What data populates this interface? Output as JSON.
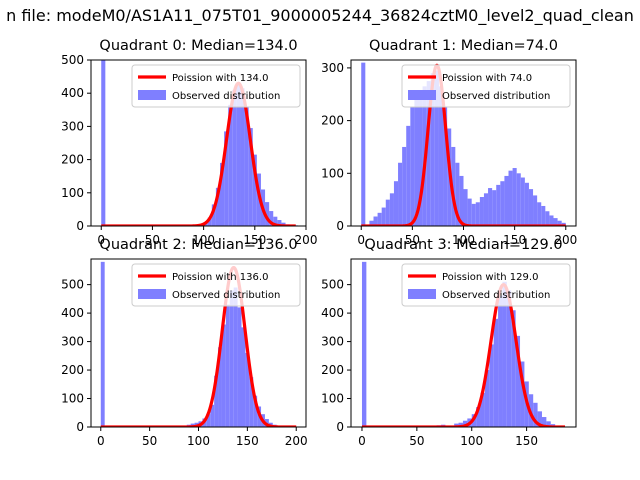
{
  "suptitle": "n file: modeM0/AS1A11_075T01_9000005244_36824cztM0_level2_quad_clean",
  "colors": {
    "observed": "#7f7fff",
    "poisson": "#ff0000",
    "axes": "#000000"
  },
  "chart_data": [
    {
      "type": "bar",
      "title": "Quadrant 0: Median=134.0",
      "xlim": [
        -10,
        200
      ],
      "ylim": [
        0,
        500
      ],
      "xticks": [
        0,
        50,
        100,
        150,
        200
      ],
      "yticks": [
        0,
        100,
        200,
        300,
        400,
        500
      ],
      "bin_width": 4,
      "histogram": {
        "name": "Observed distribution",
        "bins": [
          [
            0,
            500
          ],
          [
            96,
            5
          ],
          [
            100,
            12
          ],
          [
            104,
            25
          ],
          [
            108,
            65
          ],
          [
            112,
            115
          ],
          [
            116,
            190
          ],
          [
            120,
            285
          ],
          [
            124,
            365
          ],
          [
            128,
            410
          ],
          [
            132,
            428
          ],
          [
            136,
            415
          ],
          [
            140,
            360
          ],
          [
            144,
            295
          ],
          [
            148,
            215
          ],
          [
            152,
            158
          ],
          [
            156,
            110
          ],
          [
            160,
            72
          ],
          [
            164,
            45
          ],
          [
            168,
            28
          ],
          [
            172,
            18
          ],
          [
            176,
            10
          ],
          [
            180,
            5
          ],
          [
            184,
            3
          ],
          [
            188,
            2
          ]
        ]
      },
      "poisson": {
        "name": "Poission with 134.0",
        "mean": 134.0,
        "peak": 430,
        "sigma": 11.6,
        "xrange": [
          0,
          190
        ]
      },
      "legend": {
        "position": "upper-right",
        "entries": [
          "Poission with 134.0",
          "Observed distribution"
        ]
      }
    },
    {
      "type": "bar",
      "title": "Quadrant 1: Median=74.0",
      "xlim": [
        -10,
        210
      ],
      "ylim": [
        0,
        315
      ],
      "xticks": [
        0,
        50,
        100,
        150,
        200
      ],
      "yticks": [
        0,
        100,
        200,
        300
      ],
      "bin_width": 4,
      "histogram": {
        "name": "Observed distribution",
        "bins": [
          [
            0,
            310
          ],
          [
            8,
            10
          ],
          [
            12,
            18
          ],
          [
            16,
            25
          ],
          [
            20,
            35
          ],
          [
            24,
            50
          ],
          [
            28,
            62
          ],
          [
            32,
            85
          ],
          [
            36,
            120
          ],
          [
            40,
            150
          ],
          [
            44,
            190
          ],
          [
            48,
            225
          ],
          [
            52,
            240
          ],
          [
            56,
            250
          ],
          [
            60,
            265
          ],
          [
            64,
            275
          ],
          [
            68,
            290
          ],
          [
            72,
            295
          ],
          [
            76,
            265
          ],
          [
            80,
            225
          ],
          [
            84,
            185
          ],
          [
            88,
            150
          ],
          [
            92,
            120
          ],
          [
            96,
            95
          ],
          [
            100,
            70
          ],
          [
            104,
            52
          ],
          [
            108,
            42
          ],
          [
            112,
            45
          ],
          [
            116,
            55
          ],
          [
            120,
            62
          ],
          [
            124,
            72
          ],
          [
            128,
            68
          ],
          [
            132,
            78
          ],
          [
            136,
            85
          ],
          [
            140,
            95
          ],
          [
            144,
            105
          ],
          [
            148,
            110
          ],
          [
            152,
            100
          ],
          [
            156,
            92
          ],
          [
            160,
            82
          ],
          [
            164,
            70
          ],
          [
            168,
            58
          ],
          [
            172,
            45
          ],
          [
            176,
            38
          ],
          [
            180,
            28
          ],
          [
            184,
            20
          ],
          [
            188,
            15
          ],
          [
            192,
            10
          ],
          [
            196,
            6
          ]
        ]
      },
      "poisson": {
        "name": "Poission with 74.0",
        "mean": 74.0,
        "peak": 305,
        "sigma": 8.6,
        "xrange": [
          0,
          200
        ]
      },
      "legend": {
        "position": "upper-right",
        "entries": [
          "Poission with 74.0",
          "Observed distribution"
        ]
      }
    },
    {
      "type": "bar",
      "title": "Quadrant 2: Median=136.0",
      "xlim": [
        -10,
        210
      ],
      "ylim": [
        0,
        590
      ],
      "xticks": [
        0,
        50,
        100,
        150,
        200
      ],
      "yticks": [
        0,
        100,
        200,
        300,
        400,
        500
      ],
      "bin_width": 4,
      "histogram": {
        "name": "Observed distribution",
        "bins": [
          [
            0,
            580
          ],
          [
            80,
            3
          ],
          [
            84,
            5
          ],
          [
            88,
            8
          ],
          [
            92,
            12
          ],
          [
            96,
            15
          ],
          [
            100,
            20
          ],
          [
            104,
            30
          ],
          [
            108,
            45
          ],
          [
            112,
            78
          ],
          [
            116,
            180
          ],
          [
            120,
            280
          ],
          [
            124,
            360
          ],
          [
            128,
            430
          ],
          [
            132,
            480
          ],
          [
            136,
            490
          ],
          [
            140,
            420
          ],
          [
            144,
            350
          ],
          [
            148,
            260
          ],
          [
            152,
            175
          ],
          [
            156,
            110
          ],
          [
            160,
            72
          ],
          [
            164,
            45
          ],
          [
            168,
            28
          ],
          [
            172,
            15
          ],
          [
            176,
            8
          ],
          [
            180,
            4
          ],
          [
            184,
            2
          ]
        ]
      },
      "poisson": {
        "name": "Poission with 136.0",
        "mean": 136.0,
        "peak": 560,
        "sigma": 11.7,
        "xrange": [
          0,
          200
        ]
      },
      "legend": {
        "position": "upper-right",
        "entries": [
          "Poission with 136.0",
          "Observed distribution"
        ]
      }
    },
    {
      "type": "bar",
      "title": "Quadrant 3: Median=129.0",
      "xlim": [
        -10,
        195
      ],
      "ylim": [
        0,
        590
      ],
      "xticks": [
        0,
        50,
        100,
        150
      ],
      "yticks": [
        0,
        100,
        200,
        300,
        400,
        500
      ],
      "bin_width": 4,
      "histogram": {
        "name": "Observed distribution",
        "bins": [
          [
            0,
            580
          ],
          [
            60,
            4
          ],
          [
            68,
            6
          ],
          [
            72,
            8
          ],
          [
            84,
            12
          ],
          [
            88,
            15
          ],
          [
            92,
            22
          ],
          [
            96,
            30
          ],
          [
            100,
            45
          ],
          [
            104,
            70
          ],
          [
            108,
            120
          ],
          [
            112,
            200
          ],
          [
            116,
            290
          ],
          [
            120,
            380
          ],
          [
            124,
            460
          ],
          [
            128,
            510
          ],
          [
            132,
            480
          ],
          [
            136,
            410
          ],
          [
            140,
            320
          ],
          [
            144,
            230
          ],
          [
            148,
            160
          ],
          [
            152,
            115
          ],
          [
            156,
            85
          ],
          [
            160,
            55
          ],
          [
            164,
            35
          ],
          [
            168,
            20
          ],
          [
            172,
            10
          ],
          [
            176,
            5
          ]
        ]
      },
      "poisson": {
        "name": "Poission with 129.0",
        "mean": 129.0,
        "peak": 500,
        "sigma": 11.4,
        "xrange": [
          0,
          185
        ]
      },
      "legend": {
        "position": "upper-right",
        "entries": [
          "Poission with 129.0",
          "Observed distribution"
        ]
      }
    }
  ]
}
